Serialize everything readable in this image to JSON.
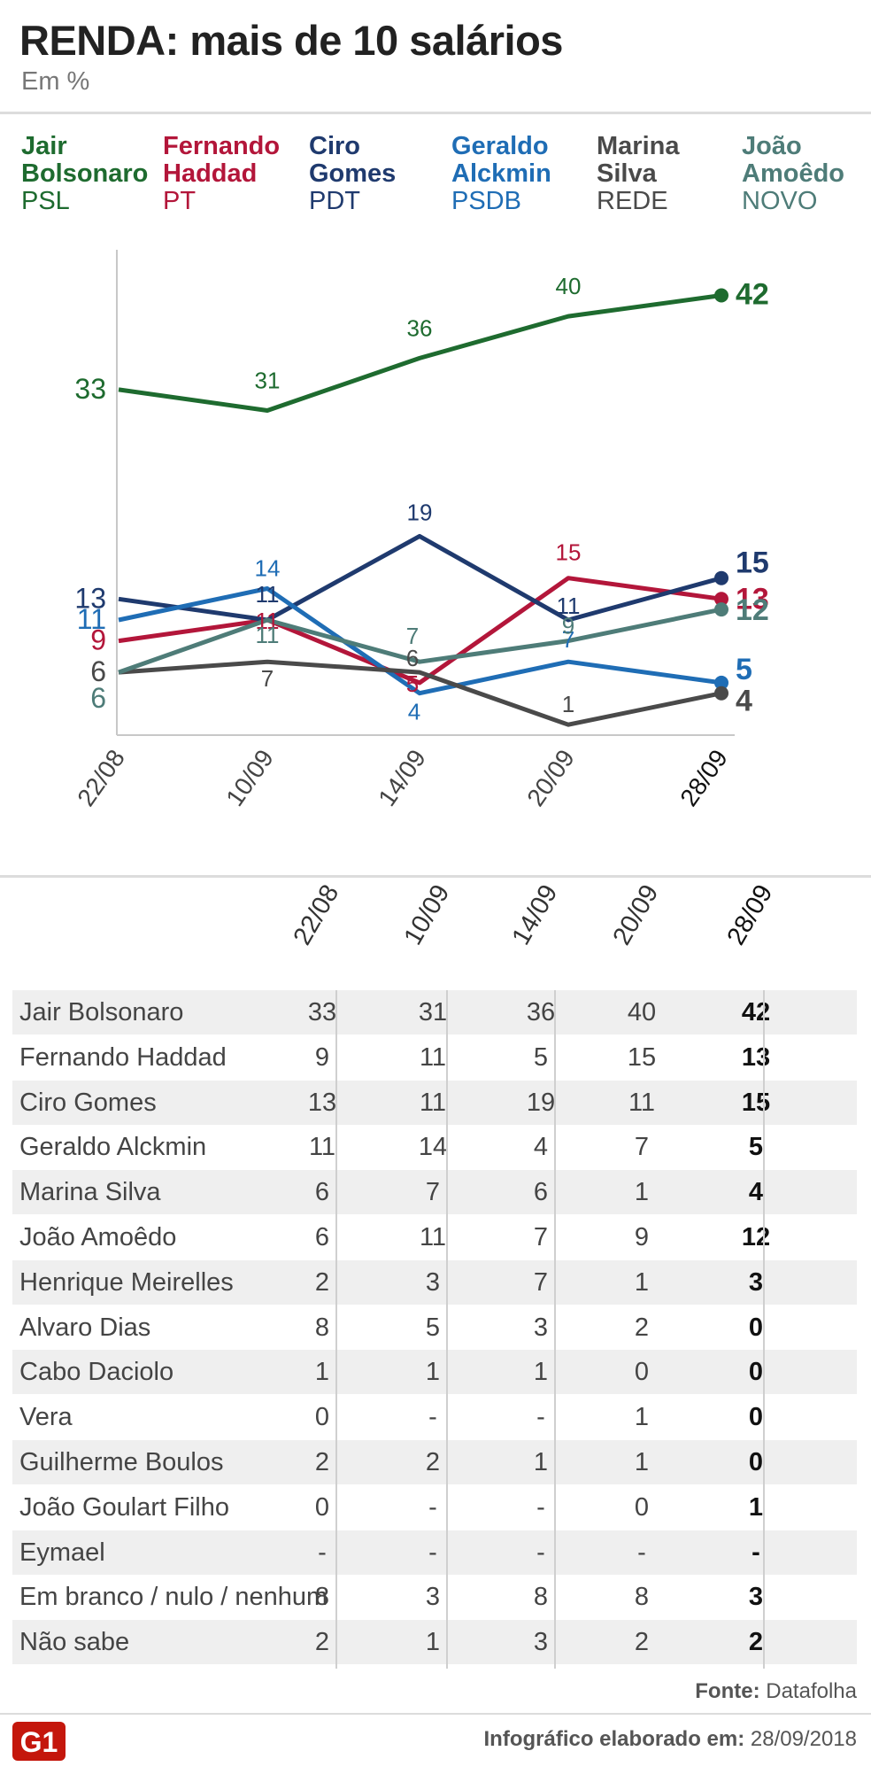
{
  "title": "RENDA: mais de 10 salários",
  "subtitle": "Em %",
  "legend": [
    {
      "name_line1": "Jair",
      "name_line2": "Bolsonaro",
      "party": "PSL",
      "color": "#1e6b2f"
    },
    {
      "name_line1": "Fernando",
      "name_line2": "Haddad",
      "party": "PT",
      "color": "#b3163a"
    },
    {
      "name_line1": "Ciro",
      "name_line2": "Gomes",
      "party": "PDT",
      "color": "#1f3a6e"
    },
    {
      "name_line1": "Geraldo",
      "name_line2": "Alckmin",
      "party": "PSDB",
      "color": "#1f6db5"
    },
    {
      "name_line1": "Marina",
      "name_line2": "Silva",
      "party": "REDE",
      "color": "#4a4a4a"
    },
    {
      "name_line1": "João",
      "name_line2": "Amoêdo",
      "party": "NOVO",
      "color": "#4e7c78"
    }
  ],
  "chart_data": {
    "type": "line",
    "title": "RENDA: mais de 10 salários",
    "ylabel": "Em %",
    "categories": [
      "22/08",
      "10/09",
      "14/09",
      "20/09",
      "28/09"
    ],
    "ylim": [
      0,
      45
    ],
    "series": [
      {
        "name": "Jair Bolsonaro",
        "color": "#1e6b2f",
        "values": [
          33,
          31,
          36,
          40,
          42
        ],
        "labels": [
          "33",
          "31",
          "36",
          "40",
          "42"
        ]
      },
      {
        "name": "Fernando Haddad",
        "color": "#b3163a",
        "values": [
          9,
          11,
          5,
          15,
          13
        ],
        "labels": [
          "9",
          "11",
          "5",
          "15",
          "13"
        ]
      },
      {
        "name": "Ciro Gomes",
        "color": "#1f3a6e",
        "values": [
          13,
          11,
          19,
          11,
          15
        ],
        "labels": [
          "13",
          "11",
          "19",
          "11",
          "15"
        ]
      },
      {
        "name": "Geraldo Alckmin",
        "color": "#1f6db5",
        "values": [
          11,
          14,
          4,
          7,
          5
        ],
        "labels": [
          "11",
          "14",
          "4",
          "7",
          "5"
        ]
      },
      {
        "name": "Marina Silva",
        "color": "#4a4a4a",
        "values": [
          6,
          7,
          6,
          1,
          4
        ],
        "labels": [
          "6",
          "7",
          "6",
          "1",
          "4"
        ]
      },
      {
        "name": "João Amoêdo",
        "color": "#4e7c78",
        "values": [
          6,
          11,
          7,
          9,
          12
        ],
        "labels": [
          "6",
          "11",
          "7",
          "9",
          "12"
        ]
      }
    ]
  },
  "table": {
    "headers": [
      "22/08",
      "10/09",
      "14/09",
      "20/09",
      "28/09"
    ],
    "rows": [
      {
        "name": "Jair Bolsonaro",
        "values": [
          "33",
          "31",
          "36",
          "40",
          "42"
        ]
      },
      {
        "name": "Fernando Haddad",
        "values": [
          "9",
          "11",
          "5",
          "15",
          "13"
        ]
      },
      {
        "name": "Ciro Gomes",
        "values": [
          "13",
          "11",
          "19",
          "11",
          "15"
        ]
      },
      {
        "name": "Geraldo Alckmin",
        "values": [
          "11",
          "14",
          "4",
          "7",
          "5"
        ]
      },
      {
        "name": "Marina Silva",
        "values": [
          "6",
          "7",
          "6",
          "1",
          "4"
        ]
      },
      {
        "name": "João Amoêdo",
        "values": [
          "6",
          "11",
          "7",
          "9",
          "12"
        ]
      },
      {
        "name": "Henrique Meirelles",
        "values": [
          "2",
          "3",
          "7",
          "1",
          "3"
        ]
      },
      {
        "name": "Alvaro Dias",
        "values": [
          "8",
          "5",
          "3",
          "2",
          "0"
        ]
      },
      {
        "name": "Cabo Daciolo",
        "values": [
          "1",
          "1",
          "1",
          "0",
          "0"
        ]
      },
      {
        "name": "Vera",
        "values": [
          "0",
          "-",
          "-",
          "1",
          "0"
        ]
      },
      {
        "name": "Guilherme Boulos",
        "values": [
          "2",
          "2",
          "1",
          "1",
          "0"
        ]
      },
      {
        "name": "João Goulart Filho",
        "values": [
          "0",
          "-",
          "-",
          "0",
          "1"
        ]
      },
      {
        "name": "Eymael",
        "values": [
          "-",
          "-",
          "-",
          "-",
          "-"
        ]
      },
      {
        "name": "Em branco / nulo / nenhum",
        "values": [
          "8",
          "3",
          "8",
          "8",
          "3"
        ]
      },
      {
        "name": "Não sabe",
        "values": [
          "2",
          "1",
          "3",
          "2",
          "2"
        ]
      }
    ]
  },
  "source": {
    "label": "Fonte:",
    "value": "Datafolha"
  },
  "footer": {
    "label": "Infográfico elaborado em:",
    "date": "28/09/2018"
  },
  "logo_text": "G1",
  "colors": {
    "logo": "#c4170c",
    "rule": "#dcdcdc",
    "shade": "#efefef"
  }
}
